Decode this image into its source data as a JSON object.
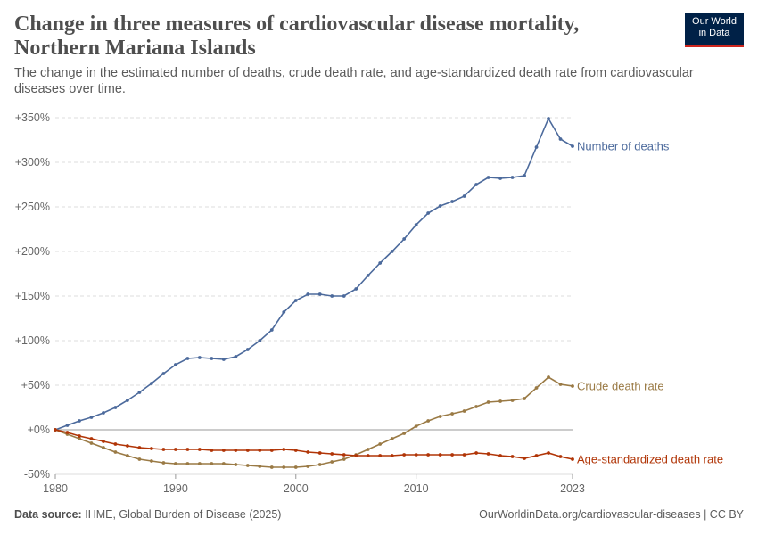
{
  "header": {
    "title": "Change in three measures of cardiovascular disease mortality, Northern Mariana Islands",
    "subtitle": "The change in the estimated number of deaths, crude death rate, and age-standardized death rate from cardiovascular diseases over time."
  },
  "logo": {
    "line1": "Our World",
    "line2": "in Data"
  },
  "footer": {
    "source_label": "Data source:",
    "source_text": "IHME, Global Burden of Disease (2025)",
    "url": "OurWorldinData.org/cardiovascular-diseases | CC BY"
  },
  "colors": {
    "deaths": "#4c6a9c",
    "crude": "#9a7a45",
    "age": "#b13507",
    "grid": "#dddddd",
    "zero": "#999999"
  },
  "chart_data": {
    "type": "line",
    "x": [
      1980,
      1981,
      1982,
      1983,
      1984,
      1985,
      1986,
      1987,
      1988,
      1989,
      1990,
      1991,
      1992,
      1993,
      1994,
      1995,
      1996,
      1997,
      1998,
      1999,
      2000,
      2001,
      2002,
      2003,
      2004,
      2005,
      2006,
      2007,
      2008,
      2009,
      2010,
      2011,
      2012,
      2013,
      2014,
      2015,
      2016,
      2017,
      2018,
      2019,
      2020,
      2021,
      2022,
      2023
    ],
    "xticks": [
      "1980",
      "1990",
      "2000",
      "2010",
      "2023"
    ],
    "yticks": [
      "-50%",
      "+0%",
      "+50%",
      "+100%",
      "+150%",
      "+200%",
      "+250%",
      "+300%",
      "+350%"
    ],
    "ylim": [
      -50,
      350
    ],
    "series": [
      {
        "name": "Number of deaths",
        "color": "#4c6a9c",
        "values": [
          0,
          5,
          10,
          14,
          19,
          25,
          33,
          42,
          52,
          63,
          73,
          80,
          81,
          80,
          79,
          82,
          90,
          100,
          112,
          132,
          145,
          152,
          152,
          150,
          150,
          158,
          173,
          187,
          200,
          214,
          230,
          243,
          251,
          256,
          262,
          275,
          283,
          282,
          283,
          285,
          317,
          349,
          326,
          318
        ]
      },
      {
        "name": "Crude death rate",
        "color": "#9a7a45",
        "values": [
          0,
          -5,
          -10,
          -15,
          -20,
          -25,
          -29,
          -33,
          -35,
          -37,
          -38,
          -38,
          -38,
          -38,
          -38,
          -39,
          -40,
          -41,
          -42,
          -42,
          -42,
          -41,
          -39,
          -36,
          -33,
          -28,
          -22,
          -16,
          -10,
          -4,
          4,
          10,
          15,
          18,
          21,
          26,
          31,
          32,
          33,
          35,
          47,
          59,
          51,
          49
        ]
      },
      {
        "name": "Age-standardized death rate",
        "color": "#b13507",
        "values": [
          0,
          -3,
          -7,
          -10,
          -13,
          -16,
          -18,
          -20,
          -21,
          -22,
          -22,
          -22,
          -22,
          -23,
          -23,
          -23,
          -23,
          -23,
          -23,
          -22,
          -23,
          -25,
          -26,
          -27,
          -28,
          -29,
          -29,
          -29,
          -29,
          -28,
          -28,
          -28,
          -28,
          -28,
          -28,
          -26,
          -27,
          -29,
          -30,
          -32,
          -29,
          -26,
          -30,
          -33
        ]
      }
    ]
  }
}
